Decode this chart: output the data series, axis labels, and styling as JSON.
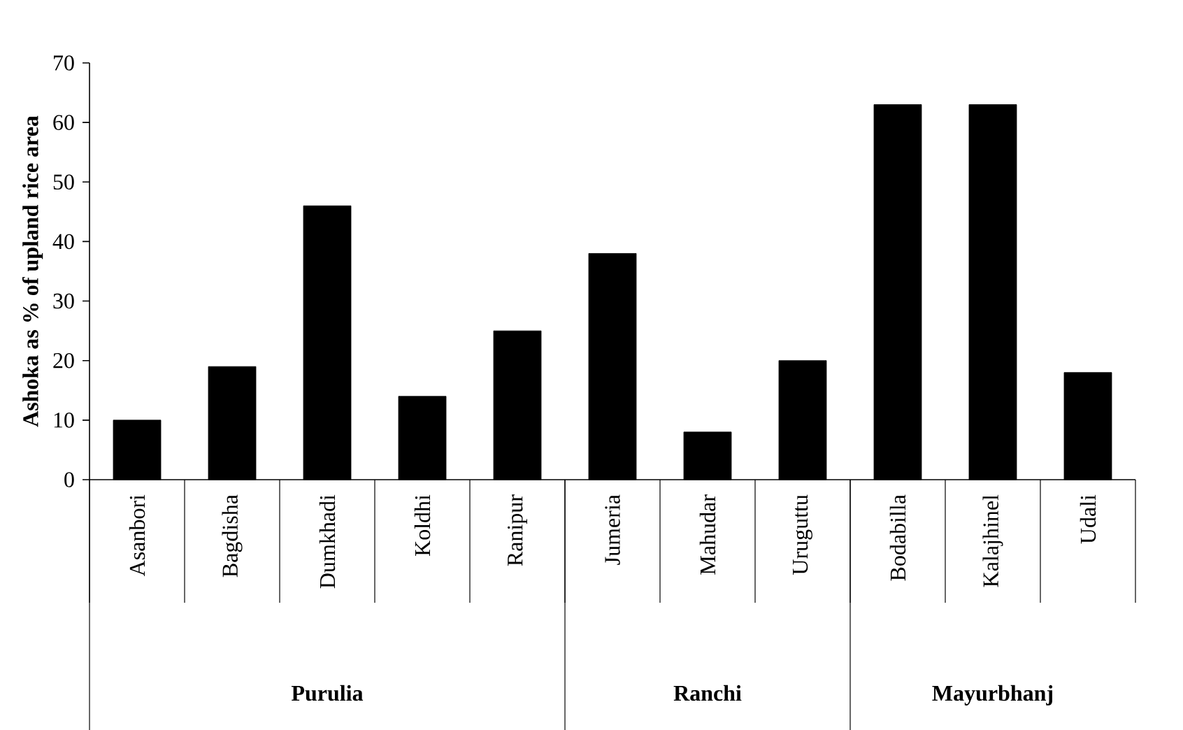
{
  "chart_data": {
    "type": "bar",
    "ylabel": "Ashoka as % of upland rice area",
    "categories": [
      "Asanbori",
      "Bagdisha",
      "Dumkhadi",
      "Koldhi",
      "Ranipur",
      "Jumeria",
      "Mahudar",
      "Uruguttu",
      "Bodabilla",
      "Kalajhinel",
      "Udali"
    ],
    "values": [
      10,
      19,
      46,
      14,
      25,
      38,
      8,
      20,
      63,
      63,
      18
    ],
    "color": "#000000",
    "ylim": [
      0,
      70
    ],
    "yticks": [
      0,
      10,
      20,
      30,
      40,
      50,
      60,
      70
    ],
    "annotations": [
      "Purulia",
      "Ranchi",
      "Mayurbhanj"
    ],
    "grid": false
  }
}
